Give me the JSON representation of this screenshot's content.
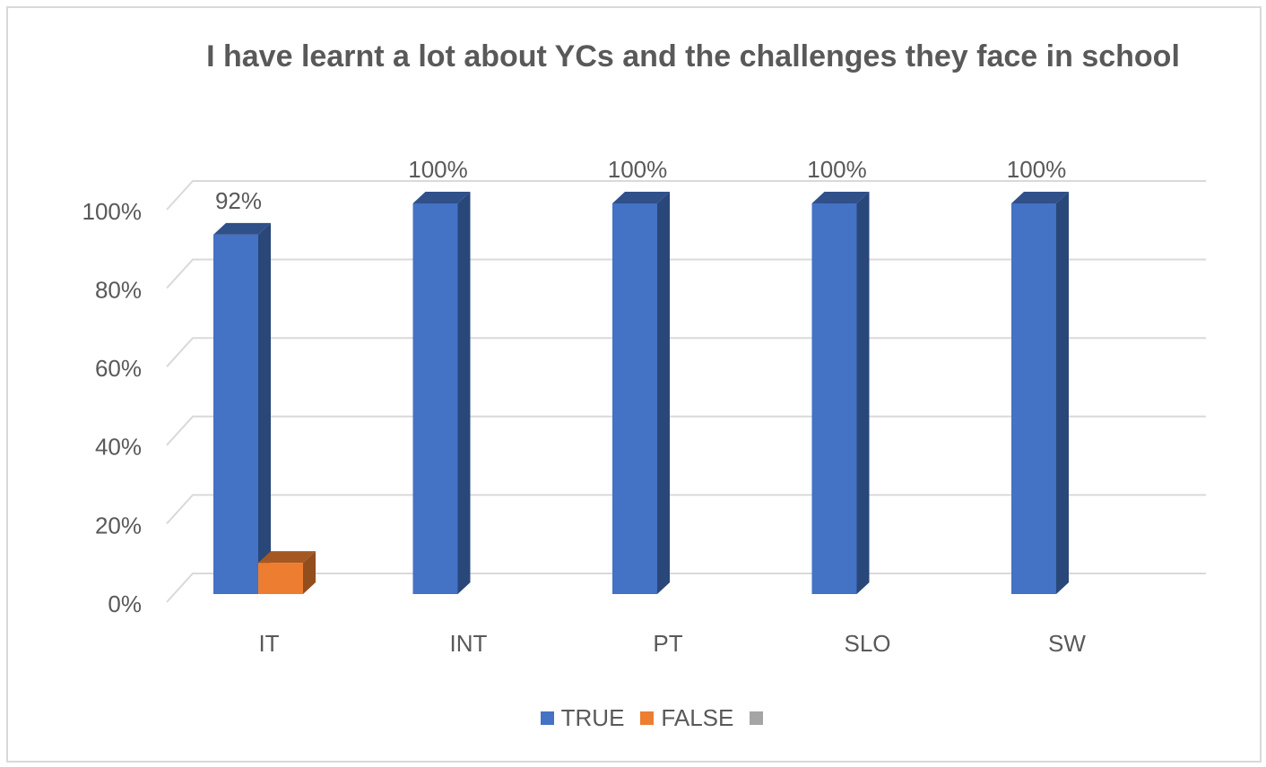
{
  "chart_data": {
    "type": "bar3d",
    "title": "I have learnt a lot about YCs and the challenges they face in school",
    "categories": [
      "IT",
      "INT",
      "PT",
      "SLO",
      "SW"
    ],
    "series": [
      {
        "name": "TRUE",
        "color": "#4472c4",
        "values": [
          92,
          100,
          100,
          100,
          100
        ],
        "value_labels": [
          "92%",
          "100%",
          "100%",
          "100%",
          "100%"
        ]
      },
      {
        "name": "FALSE",
        "color": "#ed7d31",
        "values": [
          8,
          null,
          null,
          null,
          null
        ]
      },
      {
        "name": null,
        "color": "#a5a5a5",
        "values": [
          null,
          null,
          null,
          null,
          null
        ]
      }
    ],
    "ylim": [
      0,
      100
    ],
    "yticks": [
      {
        "value": 0,
        "label": "0%"
      },
      {
        "value": 20,
        "label": "20%"
      },
      {
        "value": 40,
        "label": "40%"
      },
      {
        "value": 60,
        "label": "60%"
      },
      {
        "value": 80,
        "label": "80%"
      },
      {
        "value": 100,
        "label": "100%"
      }
    ],
    "grid": true,
    "legend": "bottom"
  }
}
